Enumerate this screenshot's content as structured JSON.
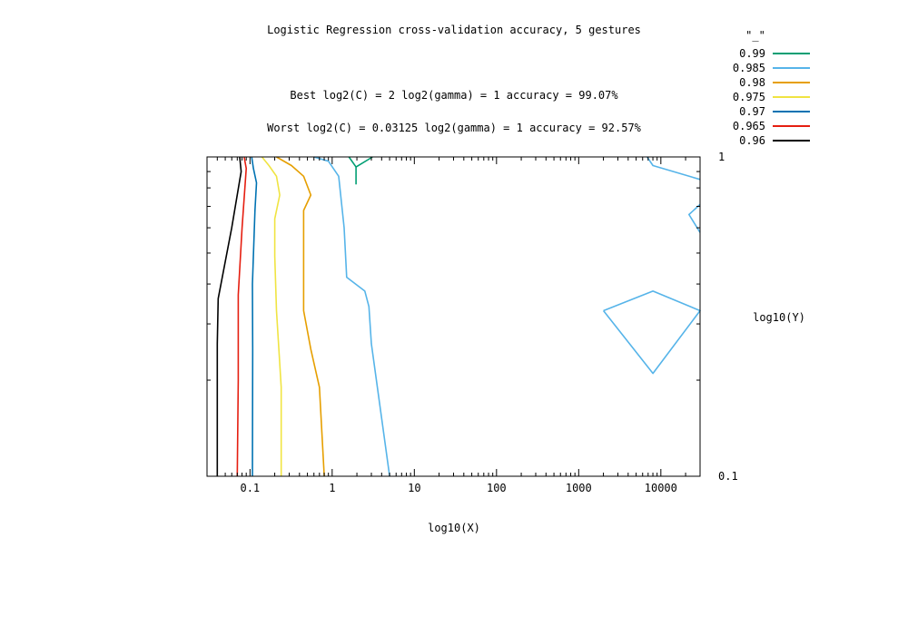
{
  "chart_data": {
    "type": "contour",
    "title": "Logistic Regression cross-validation accuracy, 5 gestures",
    "subtitle_best": "Best log2(C) = 2  log2(gamma) = 1  accuracy = 99.07%",
    "subtitle_worst": "Worst log2(C) = 0.03125  log2(gamma) = 1   accuracy = 92.57%",
    "xlabel": "log10(X)",
    "ylabel": "log10(Y)",
    "x_scale": "log",
    "y_scale": "log",
    "xlim": [
      0.03,
      30000
    ],
    "ylim": [
      0.1,
      1
    ],
    "x_ticks": [
      {
        "value": 0.1,
        "label": "0.1"
      },
      {
        "value": 1,
        "label": "1"
      },
      {
        "value": 10,
        "label": "10"
      },
      {
        "value": 100,
        "label": "100"
      },
      {
        "value": 1000,
        "label": "1000"
      },
      {
        "value": 10000,
        "label": "10000"
      }
    ],
    "y_ticks": [
      {
        "value": 0.1,
        "label": "0.1"
      },
      {
        "value": 1,
        "label": "1"
      }
    ],
    "legend_title": "\"_\"",
    "legend_position": "top-right",
    "grid": false,
    "series": [
      {
        "name": "0.99",
        "color": "#009e73",
        "lines": [
          [
            [
              1.6,
              1.0
            ],
            [
              1.95,
              0.93
            ],
            [
              3.1,
              1.0
            ]
          ],
          [
            [
              1.95,
              0.93
            ],
            [
              1.95,
              0.82
            ]
          ]
        ]
      },
      {
        "name": "0.985",
        "color": "#56b4e9",
        "lines": [
          [
            [
              0.6,
              1.0
            ],
            [
              0.9,
              0.97
            ],
            [
              1.2,
              0.87
            ],
            [
              1.4,
              0.6
            ],
            [
              1.5,
              0.42
            ],
            [
              2.5,
              0.38
            ],
            [
              2.8,
              0.34
            ],
            [
              3.0,
              0.26
            ],
            [
              5.0,
              0.1
            ]
          ],
          [
            [
              6800,
              1.0
            ],
            [
              8000,
              0.94
            ],
            [
              30000,
              0.85
            ]
          ],
          [
            [
              30000,
              0.71
            ],
            [
              22000,
              0.66
            ],
            [
              30000,
              0.58
            ]
          ],
          [
            [
              2000,
              0.33
            ],
            [
              8000,
              0.38
            ],
            [
              30000,
              0.33
            ],
            [
              8000,
              0.21
            ],
            [
              2000,
              0.33
            ]
          ]
        ]
      },
      {
        "name": "0.98",
        "color": "#e69f00",
        "lines": [
          [
            [
              0.21,
              1.0
            ],
            [
              0.32,
              0.94
            ],
            [
              0.45,
              0.87
            ],
            [
              0.55,
              0.76
            ],
            [
              0.45,
              0.68
            ],
            [
              0.45,
              0.33
            ],
            [
              0.55,
              0.25
            ],
            [
              0.7,
              0.19
            ],
            [
              0.8,
              0.1
            ]
          ]
        ]
      },
      {
        "name": "0.975",
        "color": "#f0e442",
        "lines": [
          [
            [
              0.14,
              1.0
            ],
            [
              0.17,
              0.94
            ],
            [
              0.21,
              0.87
            ],
            [
              0.23,
              0.76
            ],
            [
              0.2,
              0.64
            ],
            [
              0.2,
              0.49
            ],
            [
              0.21,
              0.33
            ],
            [
              0.24,
              0.19
            ],
            [
              0.24,
              0.1
            ]
          ]
        ]
      },
      {
        "name": "0.97",
        "color": "#0072b2",
        "lines": [
          [
            [
              0.105,
              1.0
            ],
            [
              0.11,
              0.92
            ],
            [
              0.12,
              0.83
            ],
            [
              0.115,
              0.68
            ],
            [
              0.107,
              0.4
            ],
            [
              0.108,
              0.25
            ],
            [
              0.107,
              0.1
            ]
          ]
        ]
      },
      {
        "name": "0.965",
        "color": "#e51e10",
        "lines": [
          [
            [
              0.085,
              1.0
            ],
            [
              0.09,
              0.92
            ],
            [
              0.08,
              0.6
            ],
            [
              0.072,
              0.37
            ],
            [
              0.072,
              0.2
            ],
            [
              0.07,
              0.1
            ]
          ]
        ]
      },
      {
        "name": "0.96",
        "color": "#000000",
        "lines": [
          [
            [
              0.075,
              1.0
            ],
            [
              0.078,
              0.9
            ],
            [
              0.06,
              0.6
            ],
            [
              0.041,
              0.36
            ],
            [
              0.04,
              0.26
            ],
            [
              0.04,
              0.1
            ]
          ]
        ]
      }
    ]
  }
}
